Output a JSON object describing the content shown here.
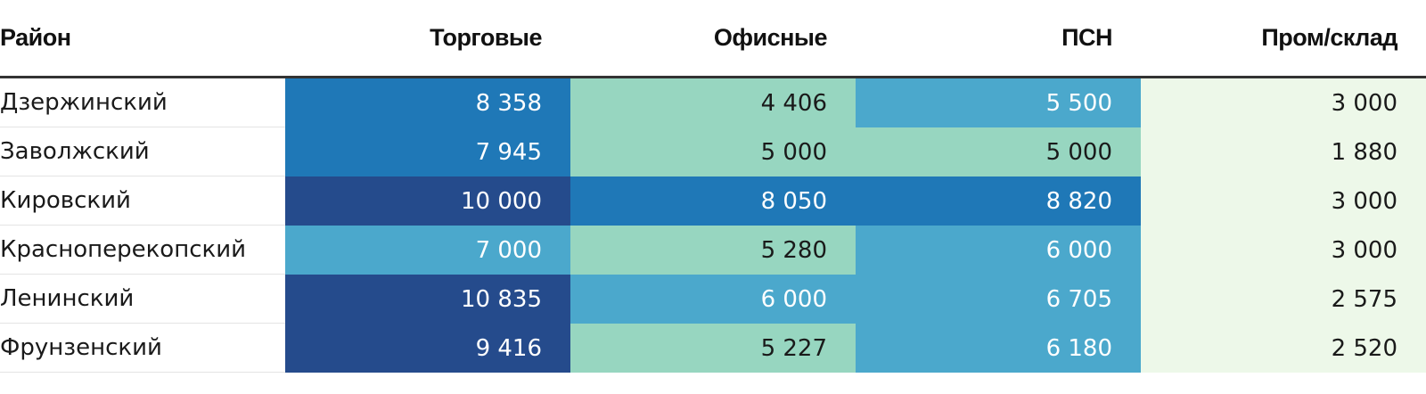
{
  "chart_data": {
    "type": "table",
    "columns": [
      "Район",
      "Торговые",
      "Офисные",
      "ПСН",
      "Пром/склад"
    ],
    "rows": [
      {
        "district": "Дзержинский",
        "values": [
          "8 358",
          "4 406",
          "5 500",
          "3 000"
        ]
      },
      {
        "district": "Заволжский",
        "values": [
          "7 945",
          "5 000",
          "5 000",
          "1 880"
        ]
      },
      {
        "district": "Кировский",
        "values": [
          "10 000",
          "8 050",
          "8 820",
          "3 000"
        ]
      },
      {
        "district": "Красноперекопский",
        "values": [
          "7 000",
          "5 280",
          "6 000",
          "3 000"
        ]
      },
      {
        "district": "Ленинский",
        "values": [
          "10 835",
          "6 000",
          "6 705",
          "2 575"
        ]
      },
      {
        "district": "Фрунзенский",
        "values": [
          "9 416",
          "5 227",
          "6 180",
          "2 520"
        ]
      }
    ]
  },
  "colors": {
    "level_1": "#edf8e9",
    "level_2": "#97d6c0",
    "level_3": "#4ba8cc",
    "level_4": "#1f78b7",
    "level_5": "#254b8c"
  },
  "cell_levels": [
    [
      4,
      2,
      3,
      1
    ],
    [
      4,
      2,
      2,
      1
    ],
    [
      5,
      4,
      4,
      1
    ],
    [
      3,
      2,
      3,
      1
    ],
    [
      5,
      3,
      3,
      1
    ],
    [
      5,
      2,
      3,
      1
    ]
  ]
}
